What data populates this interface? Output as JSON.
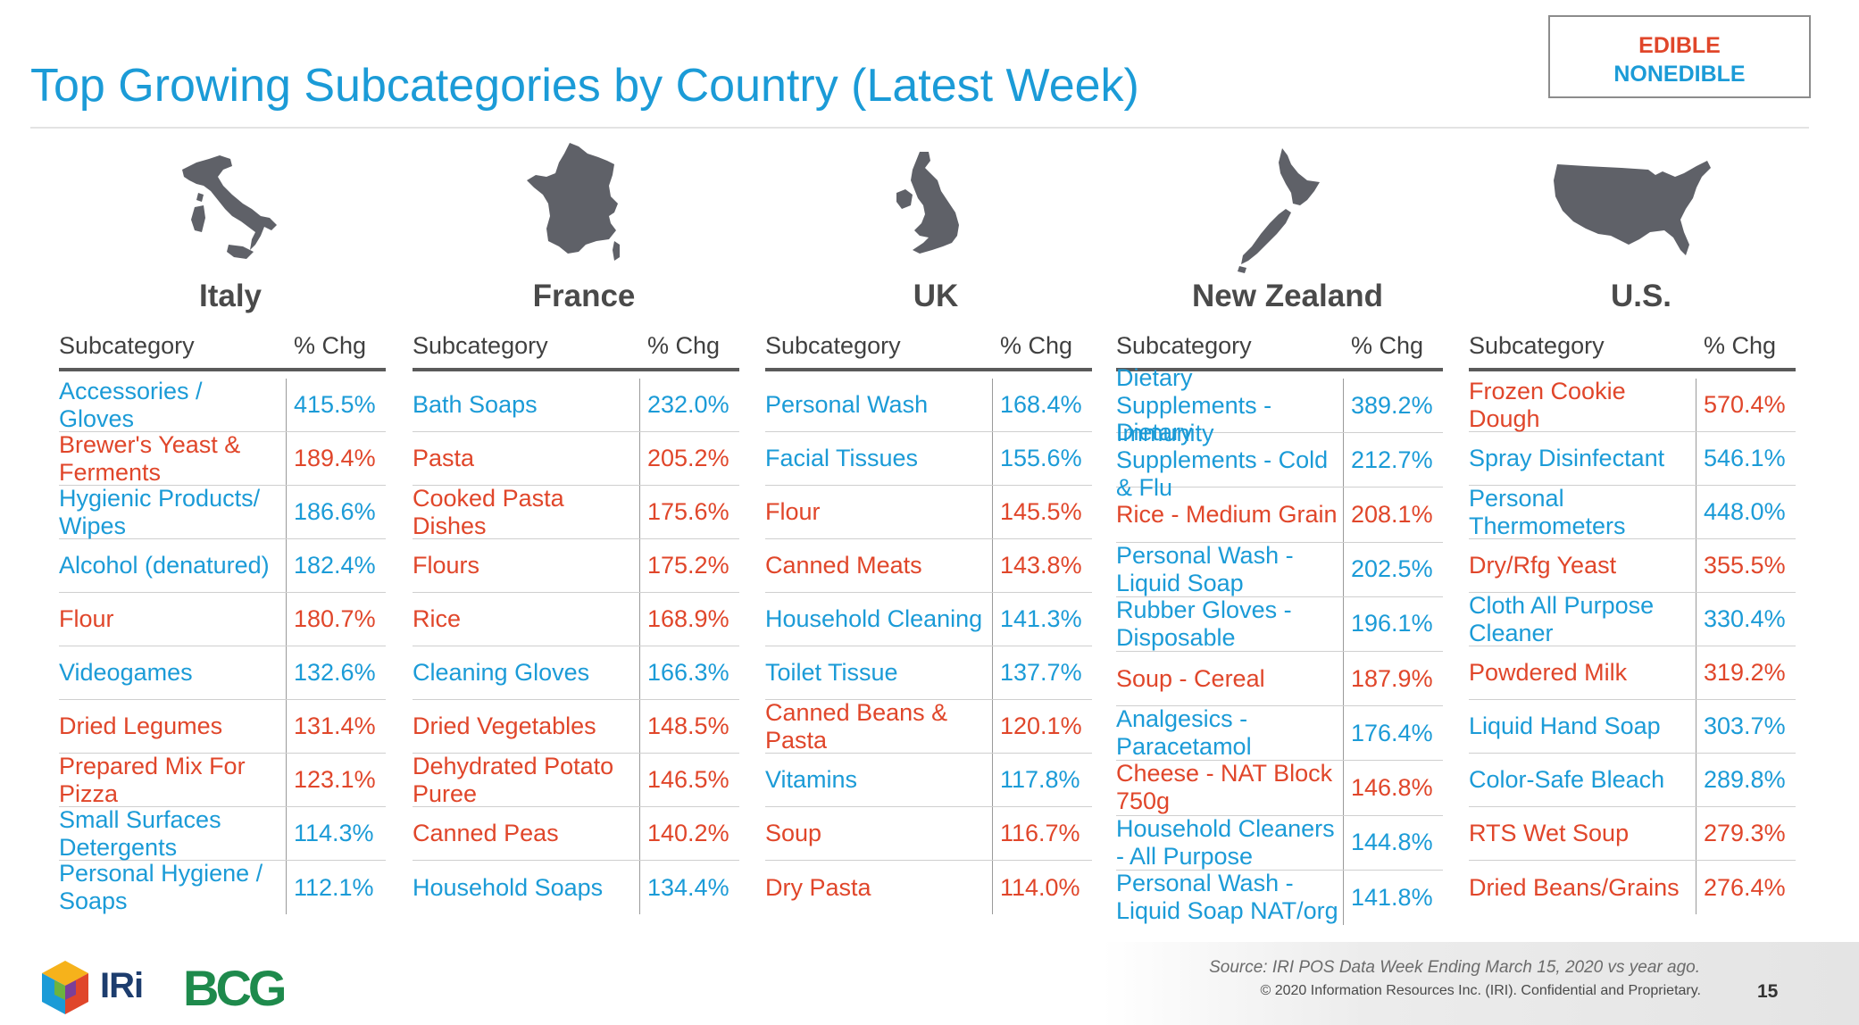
{
  "title": "Top Growing Subcategories by Country (Latest Week)",
  "legend": {
    "edible_label": "EDIBLE",
    "nonedible_label": "NONEDIBLE",
    "edible_color": "#e0462a",
    "nonedible_color": "#1b9bd7"
  },
  "table_headers": {
    "subcategory": "Subcategory",
    "pct_chg": "% Chg"
  },
  "countries": [
    {
      "name": "Italy",
      "map_icon": "italy-map-icon",
      "rows": [
        {
          "name": "Accessories / Gloves",
          "value": "415.5%",
          "type": "nonedible"
        },
        {
          "name": "Brewer's Yeast & Ferments",
          "value": "189.4%",
          "type": "edible"
        },
        {
          "name": "Hygienic Products/ Wipes",
          "value": "186.6%",
          "type": "nonedible"
        },
        {
          "name": "Alcohol (denatured)",
          "value": "182.4%",
          "type": "nonedible"
        },
        {
          "name": "Flour",
          "value": "180.7%",
          "type": "edible"
        },
        {
          "name": "Videogames",
          "value": "132.6%",
          "type": "nonedible"
        },
        {
          "name": "Dried Legumes",
          "value": "131.4%",
          "type": "edible"
        },
        {
          "name": "Prepared Mix For Pizza",
          "value": "123.1%",
          "type": "edible"
        },
        {
          "name": "Small Surfaces Detergents",
          "value": "114.3%",
          "type": "nonedible"
        },
        {
          "name": "Personal Hygiene / Soaps",
          "value": "112.1%",
          "type": "nonedible"
        }
      ]
    },
    {
      "name": "France",
      "map_icon": "france-map-icon",
      "rows": [
        {
          "name": "Bath Soaps",
          "value": "232.0%",
          "type": "nonedible"
        },
        {
          "name": "Pasta",
          "value": "205.2%",
          "type": "edible"
        },
        {
          "name": "Cooked Pasta Dishes",
          "value": "175.6%",
          "type": "edible"
        },
        {
          "name": "Flours",
          "value": "175.2%",
          "type": "edible"
        },
        {
          "name": "Rice",
          "value": "168.9%",
          "type": "edible"
        },
        {
          "name": "Cleaning Gloves",
          "value": "166.3%",
          "type": "nonedible"
        },
        {
          "name": "Dried Vegetables",
          "value": "148.5%",
          "type": "edible"
        },
        {
          "name": "Dehydrated Potato Puree",
          "value": "146.5%",
          "type": "edible"
        },
        {
          "name": "Canned Peas",
          "value": "140.2%",
          "type": "edible"
        },
        {
          "name": "Household Soaps",
          "value": "134.4%",
          "type": "nonedible"
        }
      ]
    },
    {
      "name": "UK",
      "map_icon": "uk-map-icon",
      "rows": [
        {
          "name": "Personal Wash",
          "value": "168.4%",
          "type": "nonedible"
        },
        {
          "name": "Facial Tissues",
          "value": "155.6%",
          "type": "nonedible"
        },
        {
          "name": "Flour",
          "value": "145.5%",
          "type": "edible"
        },
        {
          "name": "Canned Meats",
          "value": "143.8%",
          "type": "edible"
        },
        {
          "name": "Household Cleaning",
          "value": "141.3%",
          "type": "nonedible"
        },
        {
          "name": "Toilet Tissue",
          "value": "137.7%",
          "type": "nonedible"
        },
        {
          "name": "Canned Beans & Pasta",
          "value": "120.1%",
          "type": "edible"
        },
        {
          "name": "Vitamins",
          "value": "117.8%",
          "type": "nonedible"
        },
        {
          "name": "Soup",
          "value": "116.7%",
          "type": "edible"
        },
        {
          "name": "Dry Pasta",
          "value": "114.0%",
          "type": "edible"
        }
      ]
    },
    {
      "name": "New Zealand",
      "map_icon": "new-zealand-map-icon",
      "rows": [
        {
          "name": "Dietary Supplements - Immunity",
          "value": "389.2%",
          "type": "nonedible"
        },
        {
          "name": "Dietary Supplements - Cold & Flu",
          "value": "212.7%",
          "type": "nonedible"
        },
        {
          "name": "Rice - Medium Grain",
          "value": "208.1%",
          "type": "edible"
        },
        {
          "name": "Personal Wash - Liquid Soap",
          "value": "202.5%",
          "type": "nonedible"
        },
        {
          "name": "Rubber Gloves - Disposable",
          "value": "196.1%",
          "type": "nonedible"
        },
        {
          "name": "Soup - Cereal",
          "value": "187.9%",
          "type": "edible"
        },
        {
          "name": "Analgesics - Paracetamol",
          "value": "176.4%",
          "type": "nonedible"
        },
        {
          "name": "Cheese - NAT Block 750g",
          "value": "146.8%",
          "type": "edible"
        },
        {
          "name": "Household Cleaners - All Purpose",
          "value": "144.8%",
          "type": "nonedible"
        },
        {
          "name": "Personal Wash - Liquid Soap NAT/org",
          "value": "141.8%",
          "type": "nonedible"
        }
      ]
    },
    {
      "name": "U.S.",
      "map_icon": "us-map-icon",
      "rows": [
        {
          "name": "Frozen Cookie Dough",
          "value": "570.4%",
          "type": "edible"
        },
        {
          "name": "Spray Disinfectant",
          "value": "546.1%",
          "type": "nonedible"
        },
        {
          "name": "Personal Thermometers",
          "value": "448.0%",
          "type": "nonedible"
        },
        {
          "name": "Dry/Rfg Yeast",
          "value": "355.5%",
          "type": "edible"
        },
        {
          "name": "Cloth All Purpose Cleaner",
          "value": "330.4%",
          "type": "nonedible"
        },
        {
          "name": "Powdered Milk",
          "value": "319.2%",
          "type": "edible"
        },
        {
          "name": "Liquid Hand Soap",
          "value": "303.7%",
          "type": "nonedible"
        },
        {
          "name": "Color-Safe Bleach",
          "value": "289.8%",
          "type": "nonedible"
        },
        {
          "name": "RTS Wet Soup",
          "value": "279.3%",
          "type": "edible"
        },
        {
          "name": "Dried Beans/Grains",
          "value": "276.4%",
          "type": "edible"
        }
      ]
    }
  ],
  "footer": {
    "source": "Source: IRI POS Data Week Ending March 15, 2020 vs year ago.",
    "copyright": "© 2020 Information Resources Inc. (IRI). Confidential and Proprietary.",
    "page_number": "15",
    "iri_logo_text": "IRi",
    "bcg_logo_text": "BCG"
  }
}
